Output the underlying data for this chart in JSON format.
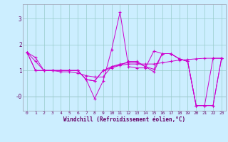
{
  "xlabel": "Windchill (Refroidissement éolien,°C)",
  "bg_color": "#cceeff",
  "line_color": "#cc00cc",
  "grid_color": "#99cccc",
  "spine_color": "#9999aa",
  "xlim": [
    -0.5,
    23.5
  ],
  "ylim": [
    -0.55,
    3.55
  ],
  "yticks": [
    0,
    1,
    2,
    3
  ],
  "ytick_labels": [
    "-0",
    "1",
    "2",
    "3"
  ],
  "xticks": [
    0,
    1,
    2,
    3,
    4,
    5,
    6,
    7,
    8,
    9,
    10,
    11,
    12,
    13,
    14,
    15,
    16,
    17,
    18,
    19,
    20,
    21,
    22,
    23
  ],
  "series": [
    [
      1.7,
      1.35,
      1.0,
      1.0,
      0.95,
      0.95,
      0.9,
      0.8,
      0.75,
      0.75,
      1.15,
      1.2,
      1.25,
      1.25,
      1.25,
      1.25,
      1.3,
      1.35,
      1.4,
      1.42,
      1.45,
      1.47,
      1.47,
      1.47
    ],
    [
      1.7,
      1.5,
      1.0,
      1.0,
      1.0,
      1.0,
      1.0,
      0.65,
      -0.08,
      0.6,
      1.8,
      3.25,
      1.15,
      1.1,
      1.1,
      1.75,
      1.65,
      1.65,
      1.45,
      1.35,
      -0.35,
      -0.35,
      1.47,
      1.47
    ],
    [
      1.7,
      1.0,
      1.0,
      1.0,
      1.0,
      1.0,
      1.0,
      0.65,
      0.6,
      1.0,
      1.1,
      1.2,
      1.35,
      1.35,
      1.15,
      0.95,
      1.65,
      1.65,
      1.45,
      1.35,
      -0.35,
      -0.35,
      -0.35,
      1.47
    ],
    [
      1.7,
      1.0,
      1.0,
      1.0,
      1.0,
      1.0,
      1.0,
      0.65,
      0.6,
      1.0,
      1.15,
      1.25,
      1.3,
      1.3,
      1.15,
      1.05,
      1.65,
      1.65,
      1.45,
      1.35,
      -0.35,
      -0.35,
      -0.35,
      1.47
    ]
  ]
}
